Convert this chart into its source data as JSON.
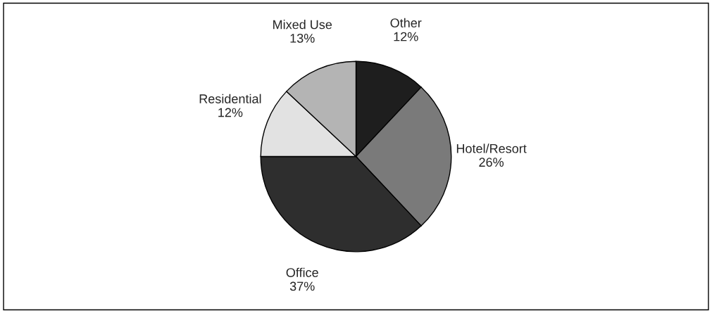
{
  "chart_data": {
    "type": "pie",
    "categories": [
      "Other",
      "Hotel/Resort",
      "Office",
      "Residential",
      "Mixed Use"
    ],
    "values": [
      12,
      26,
      37,
      12,
      13
    ],
    "value_labels": [
      "12%",
      "26%",
      "37%",
      "12%",
      "13%"
    ],
    "colors": [
      "#1e1e1e",
      "#7a7a7a",
      "#2e2e2e",
      "#e2e2e2",
      "#b4b4b4"
    ],
    "legend": false
  }
}
